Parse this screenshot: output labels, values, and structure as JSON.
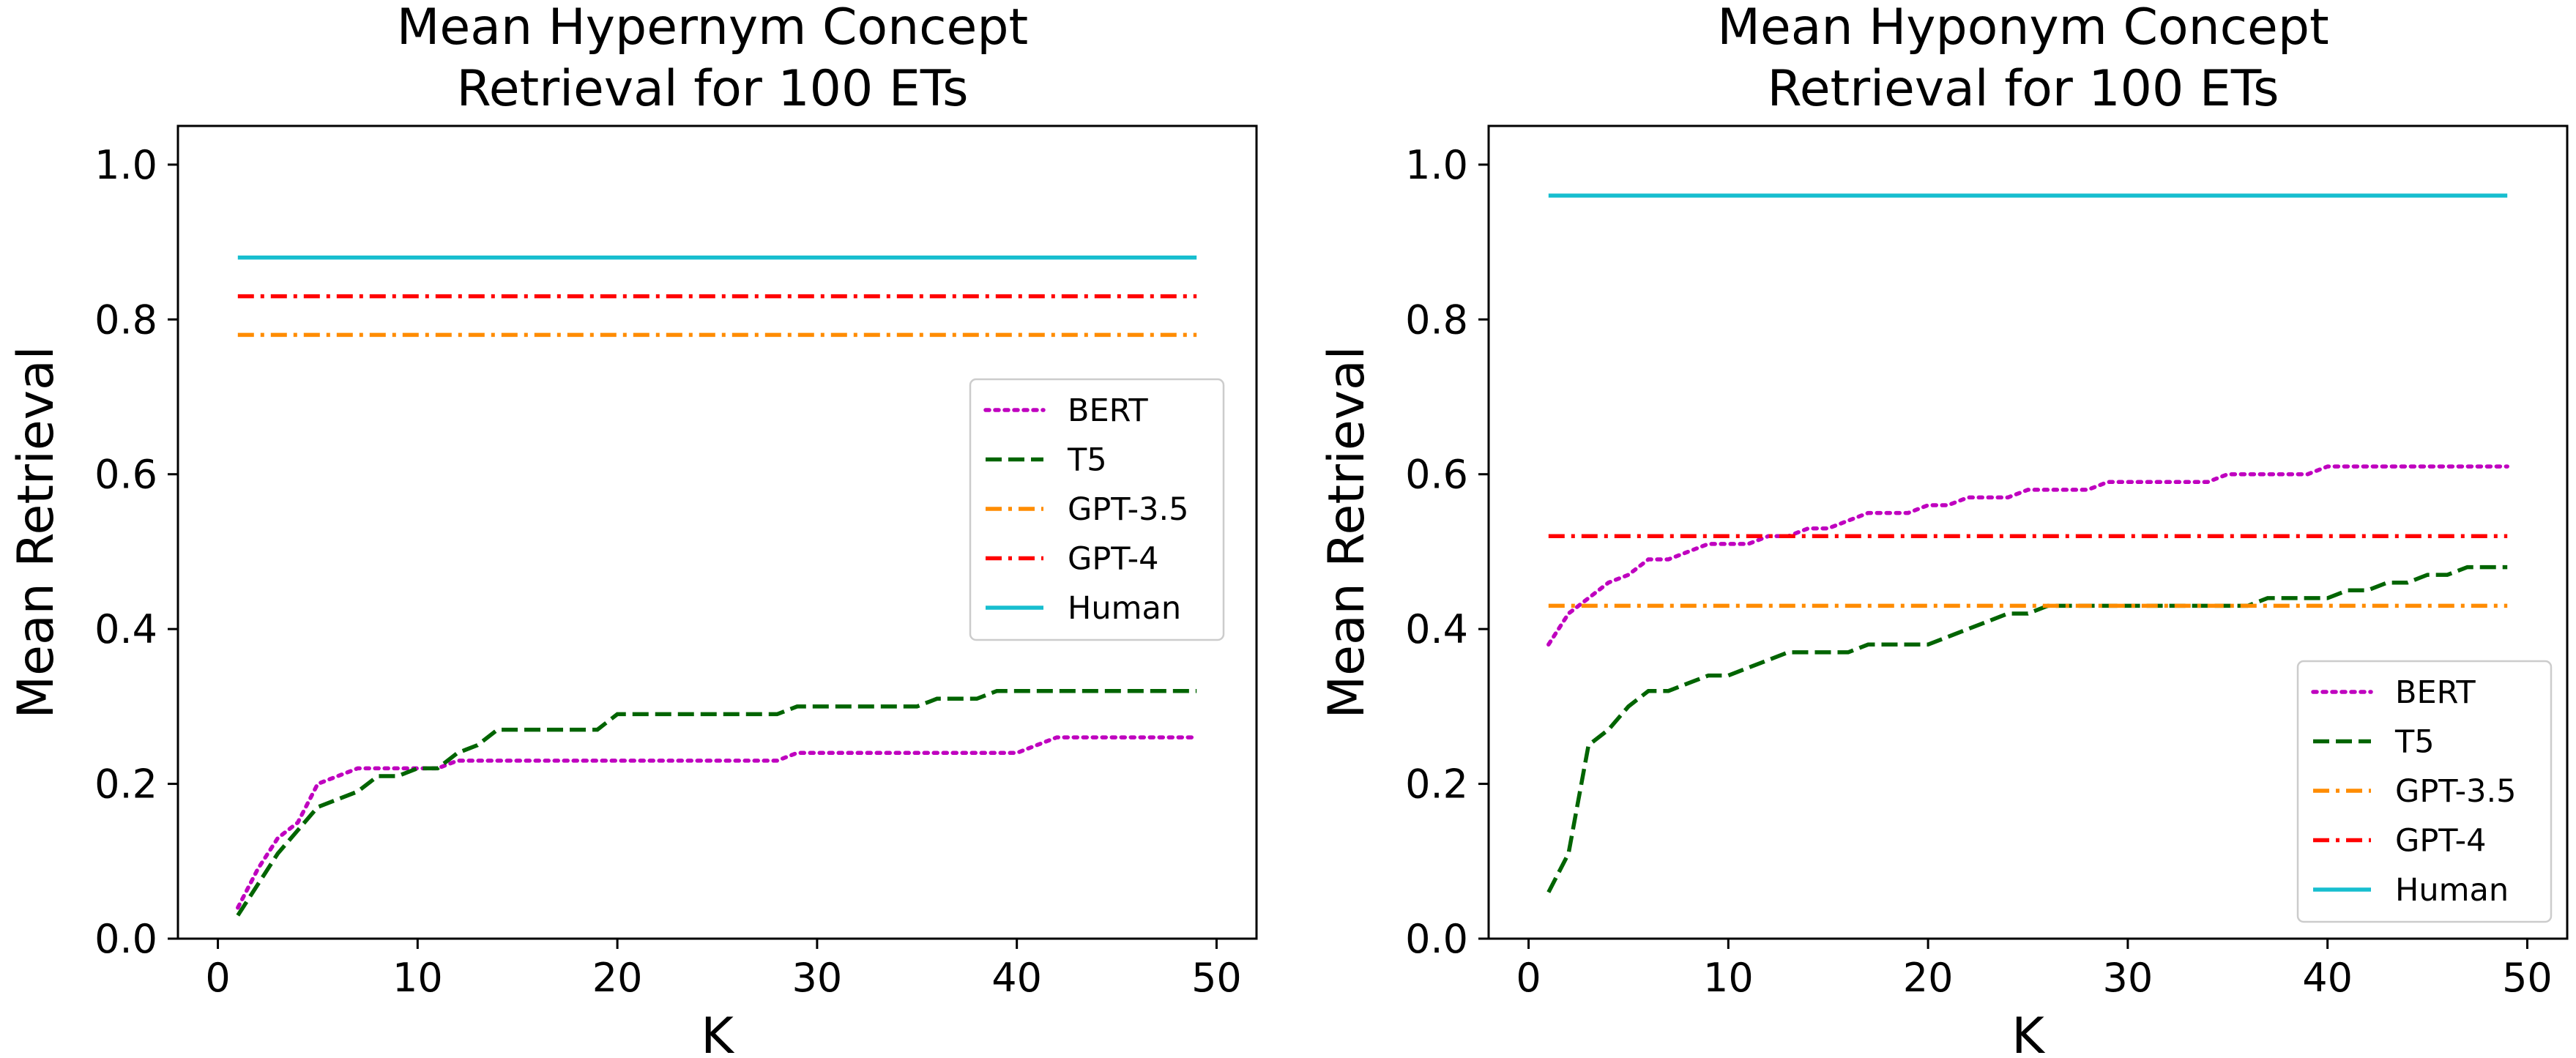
{
  "chart_data": [
    {
      "type": "line",
      "title": [
        "Mean Hypernym Concept",
        "Retrieval for 100 ETs"
      ],
      "xlabel": "K",
      "ylabel": "Mean Retrieval",
      "xlim": [
        -2,
        52
      ],
      "ylim": [
        0.0,
        1.05
      ],
      "xticks": [
        0,
        10,
        20,
        30,
        40,
        50
      ],
      "xtick_labels": [
        "0",
        "10",
        "20",
        "30",
        "40",
        "50"
      ],
      "yticks": [
        0.0,
        0.2,
        0.4,
        0.6,
        0.8,
        1.0
      ],
      "ytick_labels": [
        "0.0",
        "0.2",
        "0.4",
        "0.6",
        "0.8",
        "1.0"
      ],
      "legend_position": "center-right",
      "series": [
        {
          "name": "BERT",
          "color": "#bf00bf",
          "style": "dotted",
          "x": [
            1,
            2,
            3,
            4,
            5,
            6,
            7,
            8,
            9,
            10,
            11,
            12,
            13,
            14,
            15,
            16,
            17,
            18,
            19,
            20,
            21,
            22,
            23,
            24,
            25,
            26,
            27,
            28,
            29,
            30,
            31,
            32,
            33,
            34,
            35,
            36,
            37,
            38,
            39,
            40,
            41,
            42,
            43,
            44,
            45,
            46,
            47,
            48,
            49
          ],
          "y": [
            0.04,
            0.09,
            0.13,
            0.15,
            0.2,
            0.21,
            0.22,
            0.22,
            0.22,
            0.22,
            0.22,
            0.23,
            0.23,
            0.23,
            0.23,
            0.23,
            0.23,
            0.23,
            0.23,
            0.23,
            0.23,
            0.23,
            0.23,
            0.23,
            0.23,
            0.23,
            0.23,
            0.23,
            0.24,
            0.24,
            0.24,
            0.24,
            0.24,
            0.24,
            0.24,
            0.24,
            0.24,
            0.24,
            0.24,
            0.24,
            0.25,
            0.26,
            0.26,
            0.26,
            0.26,
            0.26,
            0.26,
            0.26,
            0.26
          ]
        },
        {
          "name": "T5",
          "color": "#006400",
          "style": "dashed",
          "x": [
            1,
            2,
            3,
            4,
            5,
            6,
            7,
            8,
            9,
            10,
            11,
            12,
            13,
            14,
            15,
            16,
            17,
            18,
            19,
            20,
            21,
            22,
            23,
            24,
            25,
            26,
            27,
            28,
            29,
            30,
            31,
            32,
            33,
            34,
            35,
            36,
            37,
            38,
            39,
            40,
            41,
            42,
            43,
            44,
            45,
            46,
            47,
            48,
            49
          ],
          "y": [
            0.03,
            0.07,
            0.11,
            0.14,
            0.17,
            0.18,
            0.19,
            0.21,
            0.21,
            0.22,
            0.22,
            0.24,
            0.25,
            0.27,
            0.27,
            0.27,
            0.27,
            0.27,
            0.27,
            0.29,
            0.29,
            0.29,
            0.29,
            0.29,
            0.29,
            0.29,
            0.29,
            0.29,
            0.3,
            0.3,
            0.3,
            0.3,
            0.3,
            0.3,
            0.3,
            0.31,
            0.31,
            0.31,
            0.32,
            0.32,
            0.32,
            0.32,
            0.32,
            0.32,
            0.32,
            0.32,
            0.32,
            0.32,
            0.32
          ]
        },
        {
          "name": "GPT-3.5",
          "color": "#ff8c00",
          "style": "dashdot",
          "x": [
            1,
            49
          ],
          "y": [
            0.78,
            0.78
          ]
        },
        {
          "name": "GPT-4",
          "color": "#ff0000",
          "style": "dashdot",
          "x": [
            1,
            49
          ],
          "y": [
            0.83,
            0.83
          ]
        },
        {
          "name": "Human",
          "color": "#17becf",
          "style": "solid",
          "x": [
            1,
            49
          ],
          "y": [
            0.88,
            0.88
          ]
        }
      ]
    },
    {
      "type": "line",
      "title": [
        "Mean Hyponym Concept",
        "Retrieval for 100 ETs"
      ],
      "xlabel": "K",
      "ylabel": "Mean Retrieval",
      "xlim": [
        -2,
        52
      ],
      "ylim": [
        0.0,
        1.05
      ],
      "xticks": [
        0,
        10,
        20,
        30,
        40,
        50
      ],
      "xtick_labels": [
        "0",
        "10",
        "20",
        "30",
        "40",
        "50"
      ],
      "yticks": [
        0.0,
        0.2,
        0.4,
        0.6,
        0.8,
        1.0
      ],
      "ytick_labels": [
        "0.0",
        "0.2",
        "0.4",
        "0.6",
        "0.8",
        "1.0"
      ],
      "legend_position": "lower-right",
      "series": [
        {
          "name": "BERT",
          "color": "#bf00bf",
          "style": "dotted",
          "x": [
            1,
            2,
            3,
            4,
            5,
            6,
            7,
            8,
            9,
            10,
            11,
            12,
            13,
            14,
            15,
            16,
            17,
            18,
            19,
            20,
            21,
            22,
            23,
            24,
            25,
            26,
            27,
            28,
            29,
            30,
            31,
            32,
            33,
            34,
            35,
            36,
            37,
            38,
            39,
            40,
            41,
            42,
            43,
            44,
            45,
            46,
            47,
            48,
            49
          ],
          "y": [
            0.38,
            0.42,
            0.44,
            0.46,
            0.47,
            0.49,
            0.49,
            0.5,
            0.51,
            0.51,
            0.51,
            0.52,
            0.52,
            0.53,
            0.53,
            0.54,
            0.55,
            0.55,
            0.55,
            0.56,
            0.56,
            0.57,
            0.57,
            0.57,
            0.58,
            0.58,
            0.58,
            0.58,
            0.59,
            0.59,
            0.59,
            0.59,
            0.59,
            0.59,
            0.6,
            0.6,
            0.6,
            0.6,
            0.6,
            0.61,
            0.61,
            0.61,
            0.61,
            0.61,
            0.61,
            0.61,
            0.61,
            0.61,
            0.61
          ]
        },
        {
          "name": "T5",
          "color": "#006400",
          "style": "dashed",
          "x": [
            1,
            2,
            3,
            4,
            5,
            6,
            7,
            8,
            9,
            10,
            11,
            12,
            13,
            14,
            15,
            16,
            17,
            18,
            19,
            20,
            21,
            22,
            23,
            24,
            25,
            26,
            27,
            28,
            29,
            30,
            31,
            32,
            33,
            34,
            35,
            36,
            37,
            38,
            39,
            40,
            41,
            42,
            43,
            44,
            45,
            46,
            47,
            48,
            49
          ],
          "y": [
            0.06,
            0.11,
            0.25,
            0.27,
            0.3,
            0.32,
            0.32,
            0.33,
            0.34,
            0.34,
            0.35,
            0.36,
            0.37,
            0.37,
            0.37,
            0.37,
            0.38,
            0.38,
            0.38,
            0.38,
            0.39,
            0.4,
            0.41,
            0.42,
            0.42,
            0.43,
            0.43,
            0.43,
            0.43,
            0.43,
            0.43,
            0.43,
            0.43,
            0.43,
            0.43,
            0.43,
            0.44,
            0.44,
            0.44,
            0.44,
            0.45,
            0.45,
            0.46,
            0.46,
            0.47,
            0.47,
            0.48,
            0.48,
            0.48
          ]
        },
        {
          "name": "GPT-3.5",
          "color": "#ff8c00",
          "style": "dashdot",
          "x": [
            1,
            49
          ],
          "y": [
            0.43,
            0.43
          ]
        },
        {
          "name": "GPT-4",
          "color": "#ff0000",
          "style": "dashdot",
          "x": [
            1,
            49
          ],
          "y": [
            0.52,
            0.52
          ]
        },
        {
          "name": "Human",
          "color": "#17becf",
          "style": "solid",
          "x": [
            1,
            49
          ],
          "y": [
            0.96,
            0.96
          ]
        }
      ]
    }
  ]
}
